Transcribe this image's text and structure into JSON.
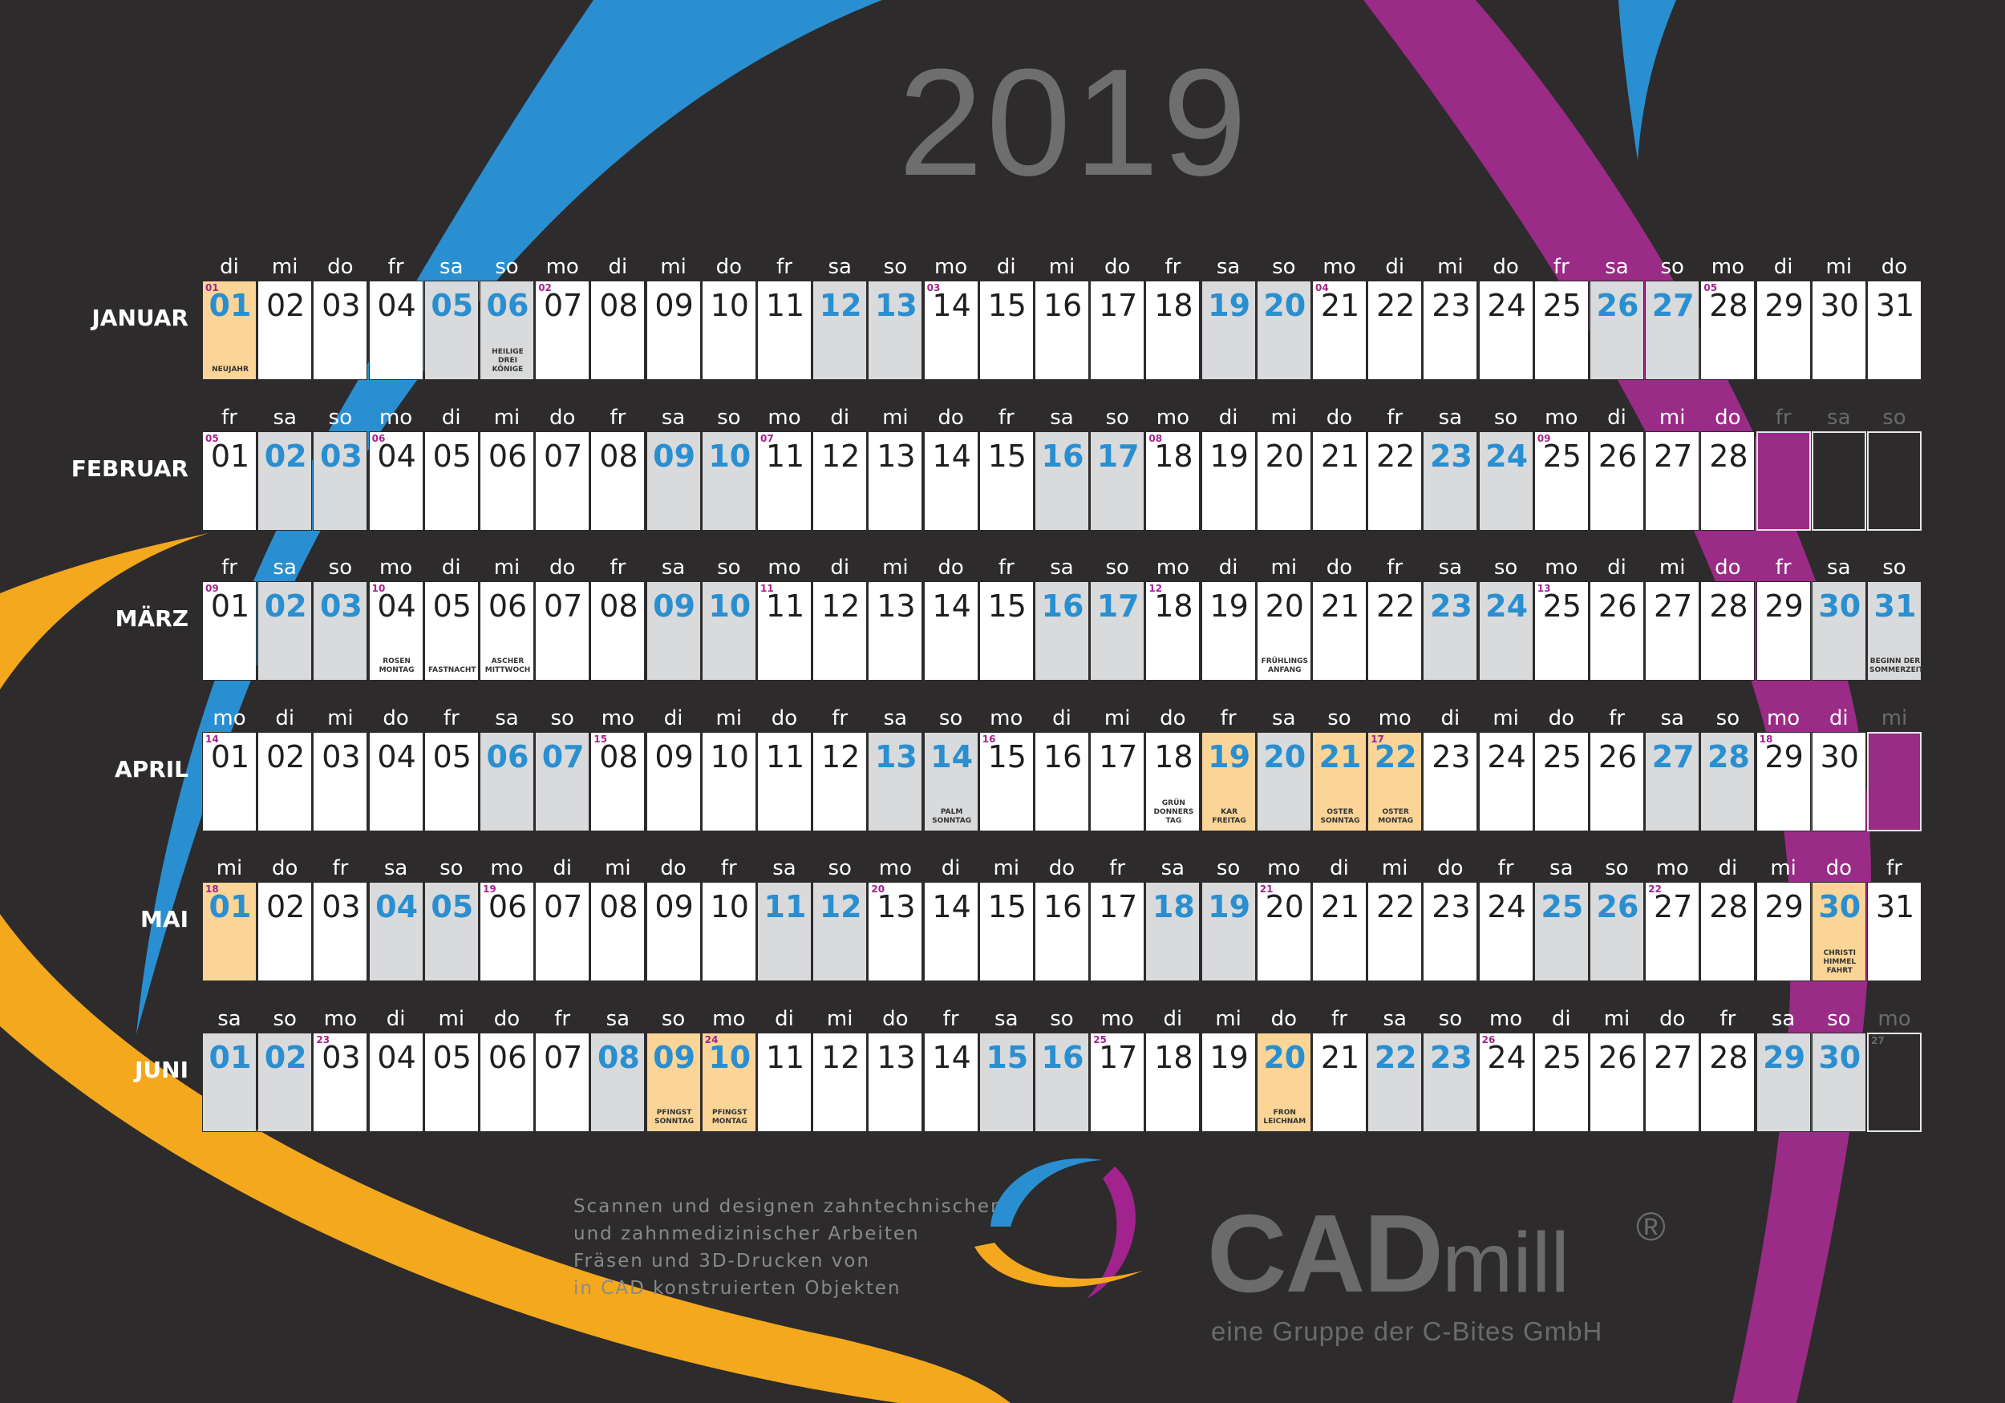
{
  "year": "2019",
  "colors": {
    "background": "#2d2b2c",
    "blue": "#2a8fd0",
    "magenta": "#a2238d",
    "orange": "#f4a81d",
    "holiday_fill": "#fad597",
    "weekend_fill": "#d9dadb"
  },
  "months": [
    {
      "name": "JANUAR",
      "weekdays": [
        "di",
        "mi",
        "do",
        "fr",
        "sa",
        "so",
        "mo",
        "di",
        "mi",
        "do",
        "fr",
        "sa",
        "so",
        "mo",
        "di",
        "mi",
        "do",
        "fr",
        "sa",
        "so",
        "mo",
        "di",
        "mi",
        "do",
        "fr",
        "sa",
        "so",
        "mo",
        "di",
        "mi",
        "do"
      ],
      "days": [
        "01",
        "02",
        "03",
        "04",
        "05",
        "06",
        "07",
        "08",
        "09",
        "10",
        "11",
        "12",
        "13",
        "14",
        "15",
        "16",
        "17",
        "18",
        "19",
        "20",
        "21",
        "22",
        "23",
        "24",
        "25",
        "26",
        "27",
        "28",
        "29",
        "30",
        "31"
      ],
      "weekend": [
        5,
        6,
        12,
        13,
        19,
        20,
        26,
        27
      ],
      "holidays": [
        1
      ],
      "week_numbers": {
        "1": "01",
        "7": "02",
        "14": "03",
        "21": "04",
        "28": "05"
      },
      "notes": {
        "1": "NEUJAHR",
        "6": "HEILIGE\nDREI\nKÖNIGE"
      },
      "trailing": []
    },
    {
      "name": "FEBRUAR",
      "weekdays": [
        "fr",
        "sa",
        "so",
        "mo",
        "di",
        "mi",
        "do",
        "fr",
        "sa",
        "so",
        "mo",
        "di",
        "mi",
        "do",
        "fr",
        "sa",
        "so",
        "mo",
        "di",
        "mi",
        "do",
        "fr",
        "sa",
        "so",
        "mo",
        "di",
        "mi",
        "do"
      ],
      "days": [
        "01",
        "02",
        "03",
        "04",
        "05",
        "06",
        "07",
        "08",
        "09",
        "10",
        "11",
        "12",
        "13",
        "14",
        "15",
        "16",
        "17",
        "18",
        "19",
        "20",
        "21",
        "22",
        "23",
        "24",
        "25",
        "26",
        "27",
        "28"
      ],
      "weekend": [
        2,
        3,
        9,
        10,
        16,
        17,
        23,
        24
      ],
      "holidays": [],
      "week_numbers": {
        "1": "05",
        "4": "06",
        "11": "07",
        "18": "08",
        "25": "09"
      },
      "notes": {},
      "trailing": [
        "fr",
        "sa",
        "so"
      ]
    },
    {
      "name": "MÄRZ",
      "weekdays": [
        "fr",
        "sa",
        "so",
        "mo",
        "di",
        "mi",
        "do",
        "fr",
        "sa",
        "so",
        "mo",
        "di",
        "mi",
        "do",
        "fr",
        "sa",
        "so",
        "mo",
        "di",
        "mi",
        "do",
        "fr",
        "sa",
        "so",
        "mo",
        "di",
        "mi",
        "do",
        "fr",
        "sa",
        "so"
      ],
      "days": [
        "01",
        "02",
        "03",
        "04",
        "05",
        "06",
        "07",
        "08",
        "09",
        "10",
        "11",
        "12",
        "13",
        "14",
        "15",
        "16",
        "17",
        "18",
        "19",
        "20",
        "21",
        "22",
        "23",
        "24",
        "25",
        "26",
        "27",
        "28",
        "29",
        "30",
        "31"
      ],
      "weekend": [
        2,
        3,
        9,
        10,
        16,
        17,
        23,
        24,
        30,
        31
      ],
      "holidays": [],
      "week_numbers": {
        "1": "09",
        "4": "10",
        "11": "11",
        "18": "12",
        "25": "13"
      },
      "notes": {
        "4": "ROSEN\nMONTAG",
        "5": "FASTNACHT",
        "6": "ASCHER\nMITTWOCH",
        "20": "FRÜHLINGS\nANFANG",
        "31": "BEGINN DER\nSOMMERZEIT"
      },
      "trailing": []
    },
    {
      "name": "APRIL",
      "weekdays": [
        "mo",
        "di",
        "mi",
        "do",
        "fr",
        "sa",
        "so",
        "mo",
        "di",
        "mi",
        "do",
        "fr",
        "sa",
        "so",
        "mo",
        "di",
        "mi",
        "do",
        "fr",
        "sa",
        "so",
        "mo",
        "di",
        "mi",
        "do",
        "fr",
        "sa",
        "so",
        "mo",
        "di"
      ],
      "days": [
        "01",
        "02",
        "03",
        "04",
        "05",
        "06",
        "07",
        "08",
        "09",
        "10",
        "11",
        "12",
        "13",
        "14",
        "15",
        "16",
        "17",
        "18",
        "19",
        "20",
        "21",
        "22",
        "23",
        "24",
        "25",
        "26",
        "27",
        "28",
        "29",
        "30"
      ],
      "weekend": [
        6,
        7,
        13,
        14,
        20,
        21,
        27,
        28
      ],
      "holidays": [
        19,
        21,
        22
      ],
      "week_numbers": {
        "1": "14",
        "8": "15",
        "15": "16",
        "22": "17",
        "29": "18"
      },
      "notes": {
        "14": "PALM\nSONNTAG",
        "18": "GRÜN\nDONNERS\nTAG",
        "19": "KAR\nFREITAG",
        "21": "OSTER\nSONNTAG",
        "22": "OSTER\nMONTAG"
      },
      "trailing": [
        "mi"
      ]
    },
    {
      "name": "MAI",
      "weekdays": [
        "mi",
        "do",
        "fr",
        "sa",
        "so",
        "mo",
        "di",
        "mi",
        "do",
        "fr",
        "sa",
        "so",
        "mo",
        "di",
        "mi",
        "do",
        "fr",
        "sa",
        "so",
        "mo",
        "di",
        "mi",
        "do",
        "fr",
        "sa",
        "so",
        "mo",
        "di",
        "mi",
        "do",
        "fr"
      ],
      "days": [
        "01",
        "02",
        "03",
        "04",
        "05",
        "06",
        "07",
        "08",
        "09",
        "10",
        "11",
        "12",
        "13",
        "14",
        "15",
        "16",
        "17",
        "18",
        "19",
        "20",
        "21",
        "22",
        "23",
        "24",
        "25",
        "26",
        "27",
        "28",
        "29",
        "30",
        "31"
      ],
      "weekend": [
        4,
        5,
        11,
        12,
        18,
        19,
        25,
        26
      ],
      "holidays": [
        1,
        30
      ],
      "week_numbers": {
        "1": "18",
        "6": "19",
        "13": "20",
        "20": "21",
        "27": "22"
      },
      "notes": {
        "30": "CHRISTI\nHIMMEL\nFAHRT"
      },
      "trailing": []
    },
    {
      "name": "JUNI",
      "weekdays": [
        "sa",
        "so",
        "mo",
        "di",
        "mi",
        "do",
        "fr",
        "sa",
        "so",
        "mo",
        "di",
        "mi",
        "do",
        "fr",
        "sa",
        "so",
        "mo",
        "di",
        "mi",
        "do",
        "fr",
        "sa",
        "so",
        "mo",
        "di",
        "mi",
        "do",
        "fr",
        "sa",
        "so"
      ],
      "days": [
        "01",
        "02",
        "03",
        "04",
        "05",
        "06",
        "07",
        "08",
        "09",
        "10",
        "11",
        "12",
        "13",
        "14",
        "15",
        "16",
        "17",
        "18",
        "19",
        "20",
        "21",
        "22",
        "23",
        "24",
        "25",
        "26",
        "27",
        "28",
        "29",
        "30"
      ],
      "weekend": [
        1,
        2,
        8,
        9,
        15,
        16,
        22,
        23,
        29,
        30
      ],
      "holidays": [
        9,
        10,
        20
      ],
      "week_numbers": {
        "3": "23",
        "10": "24",
        "17": "25",
        "24": "26"
      },
      "notes": {
        "9": "PFINGST\nSONNTAG",
        "10": "PFINGST\nMONTAG",
        "20": "FRON\nLEICHNAM"
      },
      "trailing": [
        "mo"
      ],
      "trailing_week_numbers": {
        "1": "27"
      }
    }
  ],
  "tagline": [
    "Scannen und designen zahntechnischer",
    "und zahnmedizinischer Arbeiten",
    "Fräsen und 3D-Drucken von",
    "in CAD konstruierten Objekten"
  ],
  "brand": {
    "main": "CAD",
    "sub": "mill",
    "registered": "®",
    "subtitle": "eine Gruppe der C-Bites GmbH"
  }
}
